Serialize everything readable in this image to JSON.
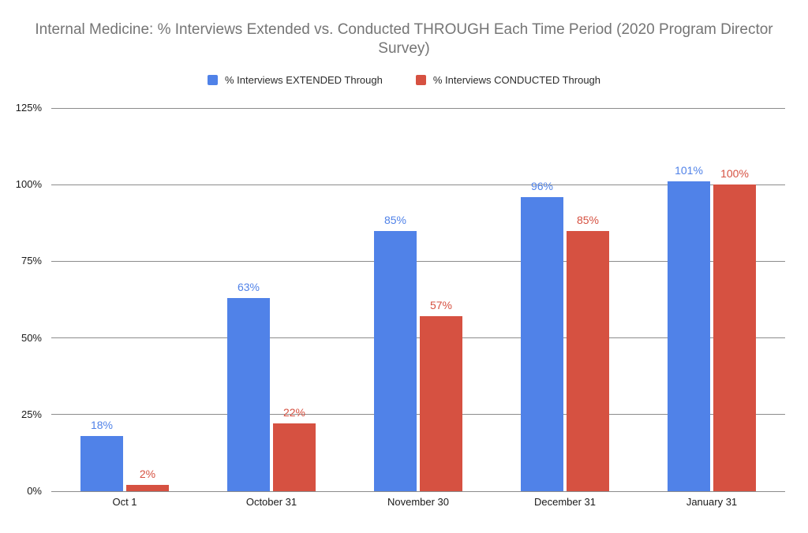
{
  "title": "Internal Medicine: % Interviews Extended vs. Conducted THROUGH Each Time Period (2020 Program Director Survey)",
  "legend": {
    "items": [
      {
        "label": "% Interviews EXTENDED Through",
        "color": "#5082E8"
      },
      {
        "label": "% Interviews CONDUCTED Through",
        "color": "#D65141"
      }
    ]
  },
  "colors": {
    "title_text": "#757575",
    "axis_text": "#1a1a1a",
    "gridline": "#8c8c8c",
    "background": "#ffffff"
  },
  "chart_data": {
    "type": "bar",
    "title": "Internal Medicine: % Interviews Extended vs. Conducted THROUGH Each Time Period (2020 Program Director Survey)",
    "categories": [
      "Oct 1",
      "October 31",
      "November 30",
      "December 31",
      "January 31"
    ],
    "series": [
      {
        "name": "% Interviews EXTENDED Through",
        "color": "#5082E8",
        "values": [
          18,
          63,
          85,
          96,
          101
        ],
        "data_labels": [
          "18%",
          "63%",
          "85%",
          "96%",
          "101%"
        ]
      },
      {
        "name": "% Interviews CONDUCTED Through",
        "color": "#D65141",
        "values": [
          2,
          22,
          57,
          85,
          100
        ],
        "data_labels": [
          "2%",
          "22%",
          "57%",
          "85%",
          "100%"
        ]
      }
    ],
    "xlabel": "",
    "ylabel": "",
    "ylim": [
      0,
      125
    ],
    "ytick_values": [
      0,
      25,
      50,
      75,
      100,
      125
    ],
    "ytick_labels": [
      "0%",
      "25%",
      "50%",
      "75%",
      "100%",
      "125%"
    ],
    "grid": true,
    "legend_position": "top",
    "data_labels": true
  }
}
